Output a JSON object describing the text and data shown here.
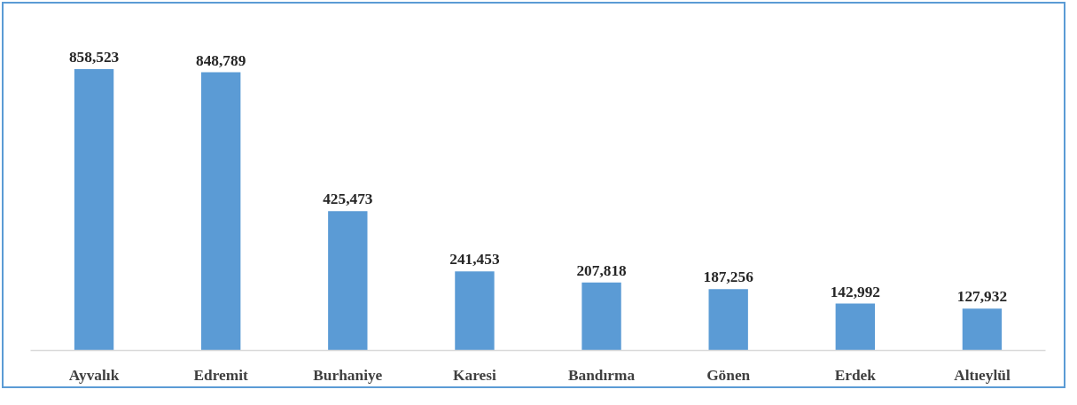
{
  "chart_data": {
    "type": "bar",
    "categories": [
      "Ayvalık",
      "Edremit",
      "Burhaniye",
      "Karesi",
      "Bandırma",
      "Gönen",
      "Erdek",
      "Altıeylül"
    ],
    "values": [
      858523,
      848789,
      425473,
      241453,
      207818,
      187256,
      142992,
      127932
    ],
    "value_labels": [
      "858,523",
      "848,789",
      "425,473",
      "241,453",
      "207,818",
      "187,256",
      "142,992",
      "127,932"
    ],
    "color": "#5b9bd5",
    "tick_labels": "x"
  }
}
